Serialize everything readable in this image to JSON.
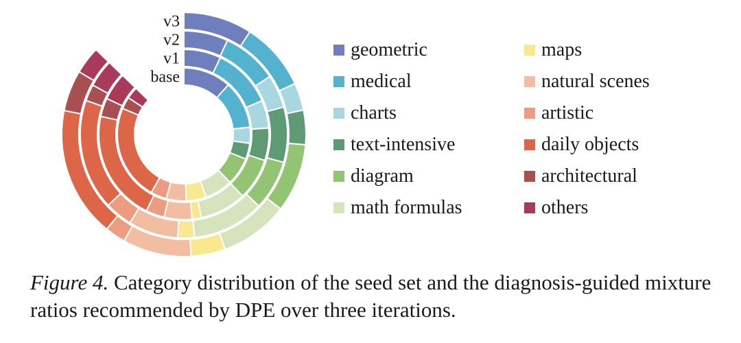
{
  "chart_data": {
    "type": "pie",
    "variant": "multi-ring donut, partial (open gap at top-left)",
    "rings": [
      "base",
      "v1",
      "v2",
      "v3"
    ],
    "ring_order": "base innermost, v3 outermost",
    "categories": [
      "geometric",
      "medical",
      "charts",
      "text-intensive",
      "diagram",
      "math formulas",
      "maps",
      "natural scenes",
      "artistic",
      "daily objects",
      "architectural",
      "others"
    ],
    "colors": [
      "#6f7fbe",
      "#53b3cf",
      "#a8d7e2",
      "#5e9a73",
      "#93c474",
      "#d6e4be",
      "#f8e88e",
      "#f2bda0",
      "#ec9c80",
      "#dd6548",
      "#a94f52",
      "#a93a5a"
    ],
    "series": [
      {
        "name": "base",
        "values": [
          12,
          12,
          4,
          4,
          7,
          7,
          5,
          5,
          4,
          24,
          3,
          3
        ]
      },
      {
        "name": "v1",
        "values": [
          8,
          13,
          6,
          7,
          9,
          10,
          2,
          6,
          4,
          24,
          4,
          6
        ]
      },
      {
        "name": "v2",
        "values": [
          8,
          10,
          6,
          10,
          9,
          13,
          3,
          9,
          5,
          20,
          3,
          5
        ]
      },
      {
        "name": "v3",
        "values": [
          10,
          10,
          4,
          5,
          10,
          10,
          5,
          10,
          3,
          19,
          6,
          4
        ]
      }
    ],
    "legend_position": "right, two columns"
  },
  "legend": {
    "items": [
      {
        "label": "geometric",
        "color": "#6f7fbe",
        "icon": "swatch"
      },
      {
        "label": "medical",
        "color": "#53b3cf",
        "icon": "swatch"
      },
      {
        "label": "charts",
        "color": "#a8d7e2",
        "icon": "swatch"
      },
      {
        "label": "text-intensive",
        "color": "#5e9a73",
        "icon": "swatch"
      },
      {
        "label": "diagram",
        "color": "#93c474",
        "icon": "swatch"
      },
      {
        "label": "math formulas",
        "color": "#d6e4be",
        "icon": "swatch"
      },
      {
        "label": "maps",
        "color": "#f8e88e",
        "icon": "swatch"
      },
      {
        "label": "natural scenes",
        "color": "#f2bda0",
        "icon": "swatch"
      },
      {
        "label": "artistic",
        "color": "#ec9c80",
        "icon": "swatch"
      },
      {
        "label": "daily objects",
        "color": "#dd6548",
        "icon": "swatch"
      },
      {
        "label": "architectural",
        "color": "#a94f52",
        "icon": "swatch"
      },
      {
        "label": "others",
        "color": "#a93a5a",
        "icon": "swatch"
      }
    ]
  },
  "caption": {
    "figure_label": "Figure 4.",
    "text": "Category distribution of the seed set and the diagnosis-guided mixture ratios recommended by DPE over three iterations."
  }
}
